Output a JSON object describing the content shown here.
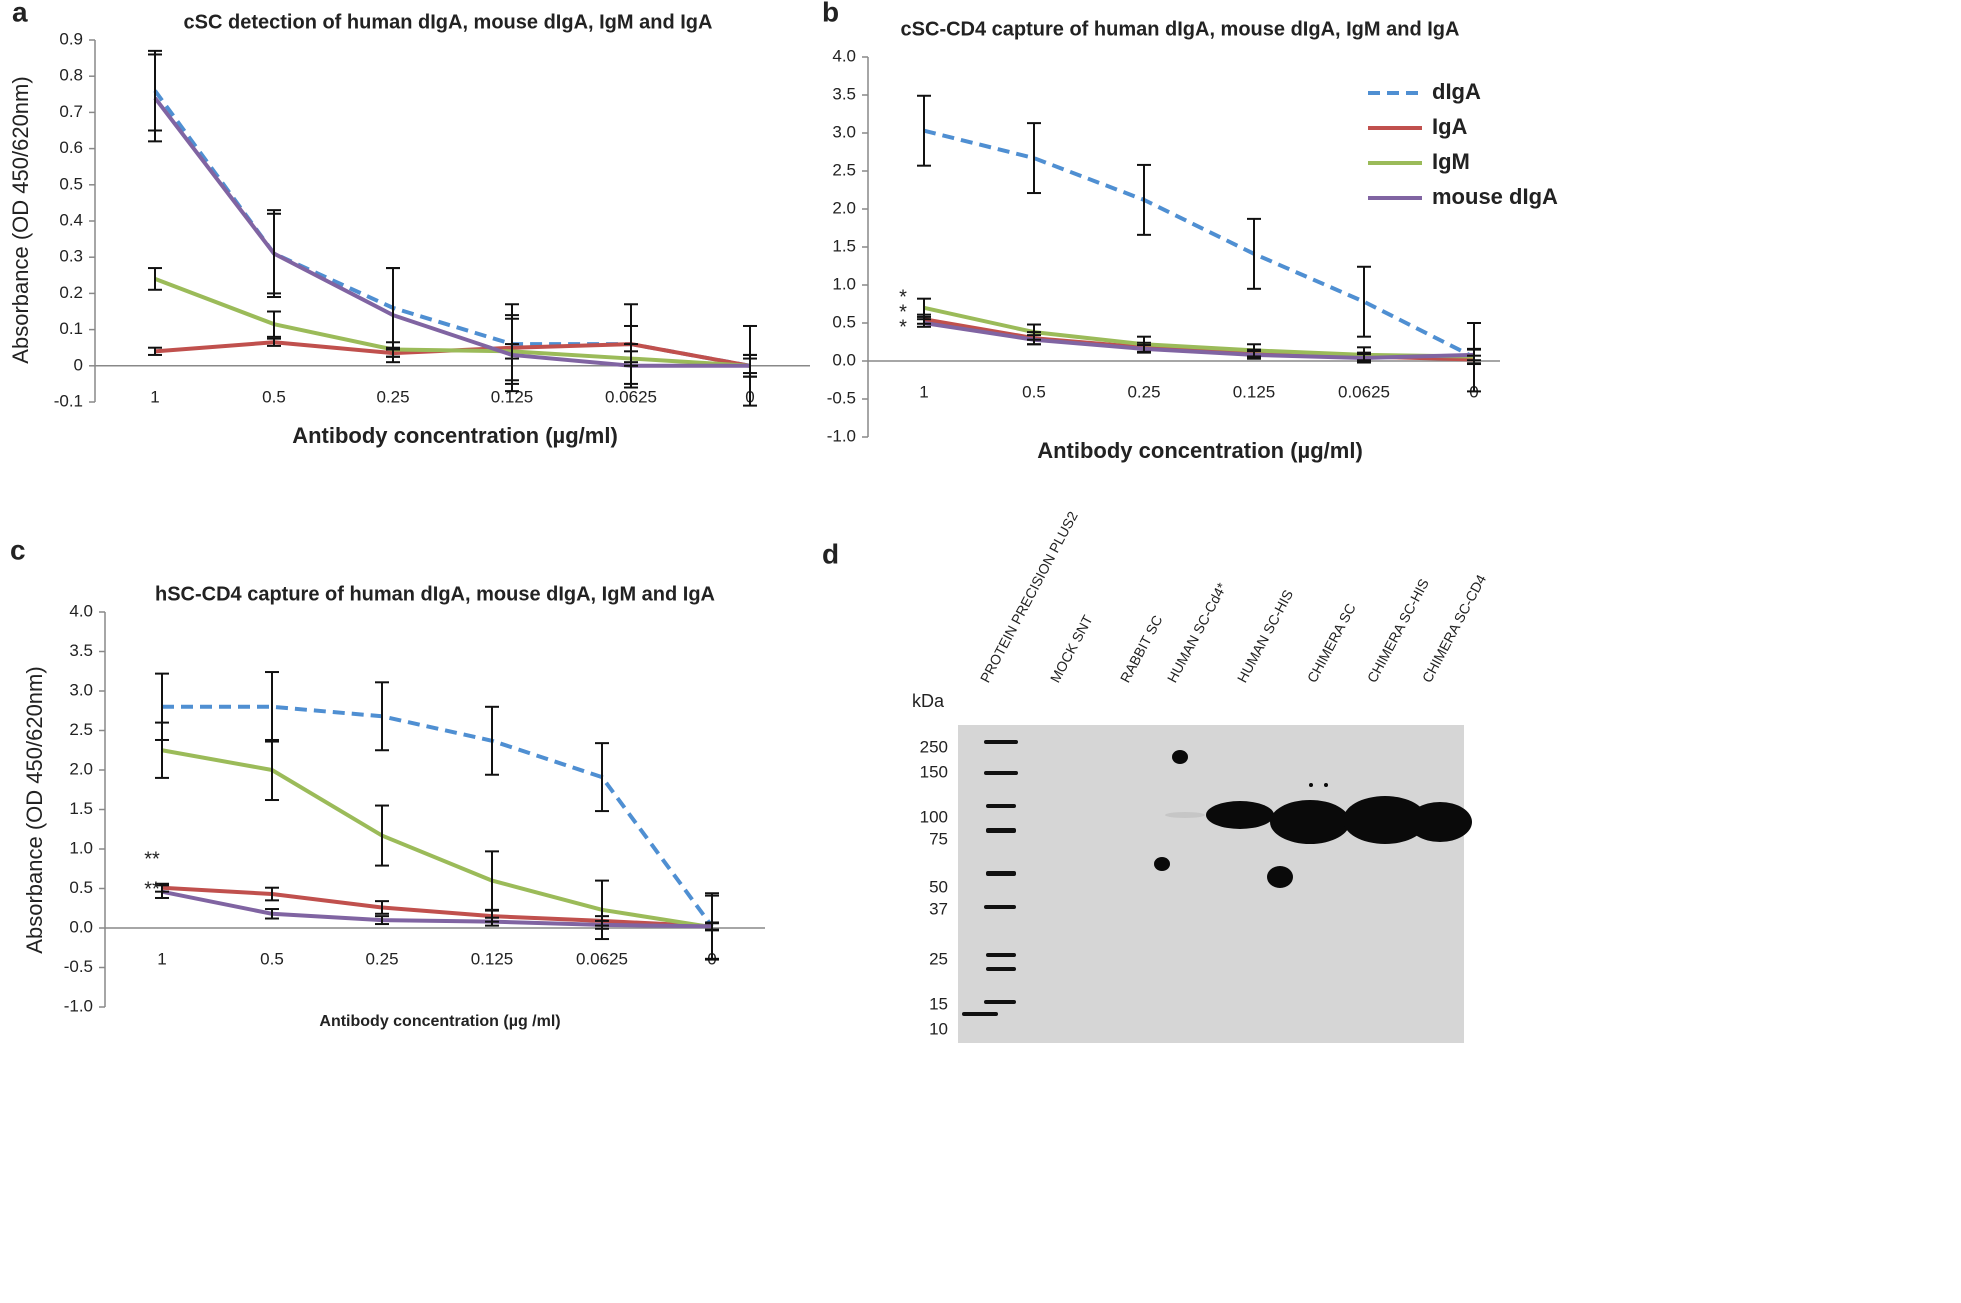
{
  "chart_data": [
    {
      "type": "line",
      "panel": "a",
      "title": "cSC detection of human dIgA, mouse dIgA, IgM and IgA",
      "x_label": "Antibody concentration (µg/ml)",
      "y_label": "Absorbance (OD 450/620nm)",
      "categories": [
        "1",
        "0.5",
        "0.25",
        "0.125",
        "0.0625",
        "0"
      ],
      "ylim": [
        -0.1,
        0.9
      ],
      "yticks": [
        -0.1,
        0,
        0.1,
        0.2,
        0.3,
        0.4,
        0.5,
        0.6,
        0.7,
        0.8,
        0.9
      ],
      "series": [
        {
          "name": "dIgA",
          "color": "#4f8fd2",
          "dashed": true,
          "values": [
            0.76,
            0.31,
            0.16,
            0.06,
            0.06,
            0
          ],
          "errors": [
            0.11,
            0.12,
            0.11,
            0.11,
            0.11,
            0.11
          ]
        },
        {
          "name": "IgA",
          "color": "#c0504d",
          "dashed": false,
          "values": [
            0.04,
            0.065,
            0.035,
            0.05,
            0.06,
            0
          ],
          "errors": [
            0.01,
            0.01,
            0.01,
            0.09,
            0.05,
            0.03
          ]
        },
        {
          "name": "IgM",
          "color": "#9bbb59",
          "dashed": false,
          "values": [
            0.24,
            0.115,
            0.045,
            0.04,
            0.02,
            0
          ],
          "errors": [
            0.03,
            0.035,
            0.02,
            0.02,
            0.02,
            0.02
          ]
        },
        {
          "name": "mouse dIgA",
          "color": "#8064a2",
          "dashed": false,
          "values": [
            0.74,
            0.31,
            0.14,
            0.03,
            0,
            0
          ],
          "errors": [
            0.12,
            0.11,
            0.13,
            0.1,
            0.06,
            0.03
          ]
        }
      ]
    },
    {
      "type": "line",
      "panel": "b",
      "title": "cSC-CD4 capture of human dIgA, mouse dIgA, IgM and IgA",
      "x_label": "Antibody concentration (µg/ml)",
      "legend": "upper right",
      "categories": [
        "1",
        "0.5",
        "0.25",
        "0.125",
        "0.0625",
        "0"
      ],
      "ylim": [
        -1,
        4
      ],
      "yticks": [
        {
          "value": -1,
          "label": "-1.0"
        },
        {
          "value": -0.5,
          "label": "-0.5"
        },
        {
          "value": 0,
          "label": "0.0"
        },
        0.5,
        {
          "value": 1,
          "label": "1.0"
        },
        1.5,
        {
          "value": 2,
          "label": "2.0"
        },
        2.5,
        {
          "value": 3,
          "label": "3.0"
        },
        3.5,
        {
          "value": 4,
          "label": "4.0"
        }
      ],
      "annotations": [
        "*",
        "*",
        "*"
      ],
      "series": [
        {
          "name": "dIgA",
          "color": "#4f8fd2",
          "dashed": true,
          "values": [
            3.03,
            2.67,
            2.12,
            1.41,
            0.78,
            0.05
          ],
          "errors": [
            0.46,
            0.46,
            0.46,
            0.46,
            0.46,
            0.45
          ]
        },
        {
          "name": "IgA",
          "color": "#c0504d",
          "dashed": false,
          "values": [
            0.55,
            0.3,
            0.18,
            0.1,
            0.06,
            0.02
          ],
          "errors": [
            0.06,
            0.08,
            0.06,
            0.05,
            0.05,
            0.05
          ]
        },
        {
          "name": "IgM",
          "color": "#9bbb59",
          "dashed": false,
          "values": [
            0.7,
            0.38,
            0.22,
            0.14,
            0.08,
            0.06
          ],
          "errors": [
            0.12,
            0.1,
            0.1,
            0.08,
            0.1,
            0.1
          ]
        },
        {
          "name": "mouse dIgA",
          "color": "#8064a2",
          "dashed": false,
          "values": [
            0.5,
            0.28,
            0.16,
            0.08,
            0.04,
            0.08
          ],
          "errors": [
            0.05,
            0.06,
            0.05,
            0.05,
            0.05,
            0.07
          ]
        }
      ]
    },
    {
      "type": "line",
      "panel": "c",
      "title": "hSC-CD4 capture of human dIgA, mouse dIgA, IgM and IgA",
      "x_label": "Antibody concentration (µg /ml)",
      "y_label": "Absorbance (OD 450/620nm)",
      "categories": [
        "1",
        "0.5",
        "0.25",
        "0.125",
        "0.0625",
        "0"
      ],
      "ylim": [
        -1,
        4
      ],
      "yticks": [
        {
          "value": -1,
          "label": "-1.0"
        },
        {
          "value": -0.5,
          "label": "-0.5"
        },
        {
          "value": 0,
          "label": "0.0"
        },
        0.5,
        {
          "value": 1,
          "label": "1.0"
        },
        1.5,
        {
          "value": 2,
          "label": "2.0"
        },
        2.5,
        {
          "value": 3,
          "label": "3.0"
        },
        3.5,
        {
          "value": 4,
          "label": "4.0"
        }
      ],
      "annotations": [
        "**",
        "**"
      ],
      "series": [
        {
          "name": "dIgA",
          "color": "#4f8fd2",
          "dashed": true,
          "values": [
            2.8,
            2.8,
            2.68,
            2.37,
            1.91,
            0.02
          ],
          "errors": [
            0.42,
            0.44,
            0.43,
            0.43,
            0.43,
            0.42
          ]
        },
        {
          "name": "IgA",
          "color": "#c0504d",
          "dashed": false,
          "values": [
            0.51,
            0.43,
            0.26,
            0.15,
            0.09,
            0.02
          ],
          "errors": [
            0.05,
            0.08,
            0.08,
            0.07,
            0.06,
            0.05
          ]
        },
        {
          "name": "IgM",
          "color": "#9bbb59",
          "dashed": false,
          "values": [
            2.25,
            2.0,
            1.17,
            0.6,
            0.23,
            0.01
          ],
          "errors": [
            0.35,
            0.38,
            0.38,
            0.37,
            0.37,
            0.4
          ]
        },
        {
          "name": "mouse dIgA",
          "color": "#8064a2",
          "dashed": false,
          "values": [
            0.46,
            0.18,
            0.1,
            0.08,
            0.04,
            0.02
          ],
          "errors": [
            0.08,
            0.06,
            0.05,
            0.05,
            0.05,
            0.04
          ]
        }
      ]
    }
  ],
  "blot": {
    "panel": "d",
    "unit": "kDa",
    "lanes": [
      "PROTEIN PRECISION PLUS2",
      "MOCK SNT",
      "RABBIT SC",
      "HUMAN SC-Cd4*",
      "HUMAN SC-HIS",
      "CHIMERA SC",
      "CHIMERA SC-HIS",
      "CHIMERA SC-CD4"
    ],
    "markers": [
      250,
      150,
      100,
      75,
      50,
      37,
      25,
      15,
      10
    ]
  }
}
